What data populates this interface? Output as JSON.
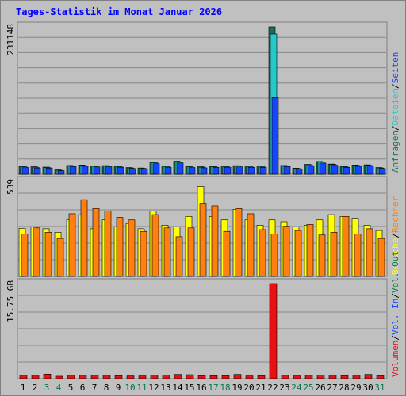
{
  "title": "Tages-Statistik im Monat Januar 2026",
  "colors": {
    "title": "#0000ff",
    "frame_bg": "#c0c0c0",
    "plot_bg": "#c0c0c0",
    "grid": "#888888",
    "anfragen": "#1e6e55",
    "dateien": "#28c8c8",
    "seiten": "#1446ff",
    "besuche": "#ffff00",
    "rechner": "#ff8010",
    "volumen": "#e81010",
    "vol_in": "#1446ff",
    "vol_out": "#008040",
    "weekend_label": "#007850",
    "weekday_label": "#000000"
  },
  "chart_data": [
    {
      "type": "bar",
      "ymax_label": "231148",
      "ylim": [
        0,
        231148
      ],
      "grid": true,
      "legend_position": "right",
      "legend": [
        {
          "key": "anfragen",
          "text": "Anfragen"
        },
        {
          "key": "dateien",
          "text": "Dateien"
        },
        {
          "key": "seiten",
          "text": "Seiten"
        }
      ],
      "series": [
        {
          "name": "Anfragen",
          "values": [
            12500,
            11800,
            11200,
            6800,
            13800,
            14500,
            13200,
            13600,
            12800,
            10500,
            9800,
            19000,
            13000,
            20500,
            12500,
            11800,
            12500,
            12800,
            13500,
            12800,
            12800,
            231148,
            13800,
            9500,
            15500,
            20000,
            16000,
            12500,
            14500,
            14800,
            10500
          ]
        },
        {
          "name": "Dateien",
          "values": [
            11800,
            11000,
            10500,
            6200,
            13000,
            13800,
            12500,
            12800,
            12000,
            9800,
            9200,
            18000,
            12200,
            19500,
            11800,
            11000,
            11800,
            12000,
            12800,
            12000,
            12000,
            220000,
            13000,
            8800,
            14800,
            19000,
            15200,
            11800,
            13800,
            14000,
            9800
          ]
        },
        {
          "name": "Seiten",
          "values": [
            10500,
            9800,
            9500,
            5500,
            12000,
            12500,
            11500,
            11800,
            11000,
            8800,
            8500,
            16500,
            11000,
            17800,
            10500,
            10000,
            10800,
            11000,
            11500,
            10800,
            10800,
            120000,
            12000,
            8000,
            13500,
            17500,
            14000,
            10800,
            12500,
            12800,
            8800
          ]
        }
      ]
    },
    {
      "type": "bar",
      "ymax_label": "539",
      "ylim": [
        0,
        539
      ],
      "grid": true,
      "legend_position": "right",
      "legend": [
        {
          "key": "besuche",
          "text": "Besuche"
        },
        {
          "key": "rechner",
          "text": "Rechner"
        }
      ],
      "series": [
        {
          "name": "Besuche",
          "values": [
            272,
            280,
            270,
            250,
            320,
            350,
            270,
            320,
            280,
            300,
            270,
            370,
            290,
            280,
            340,
            510,
            340,
            320,
            380,
            320,
            290,
            320,
            310,
            280,
            290,
            320,
            350,
            340,
            330,
            290,
            260
          ]
        },
        {
          "name": "Rechner",
          "values": [
            240,
            275,
            250,
            215,
            355,
            435,
            385,
            370,
            335,
            320,
            255,
            350,
            275,
            225,
            275,
            415,
            400,
            255,
            385,
            355,
            265,
            240,
            285,
            260,
            295,
            235,
            250,
            340,
            240,
            270,
            215
          ]
        }
      ]
    },
    {
      "type": "bar",
      "ymax_label": "15.75 GB",
      "ylim": [
        0,
        15.75
      ],
      "unit": "GB",
      "grid": true,
      "legend_position": "right",
      "legend": [
        {
          "key": "volumen",
          "text": "Volumen"
        },
        {
          "key": "vol_in",
          "text": "Vol. In"
        },
        {
          "key": "vol_out",
          "text": "Vol. Out"
        }
      ],
      "series": [
        {
          "name": "Volumen",
          "values": [
            0.55,
            0.55,
            0.75,
            0.4,
            0.55,
            0.55,
            0.55,
            0.55,
            0.5,
            0.45,
            0.45,
            0.6,
            0.6,
            0.7,
            0.65,
            0.5,
            0.5,
            0.5,
            0.7,
            0.45,
            0.5,
            15.75,
            0.55,
            0.45,
            0.55,
            0.6,
            0.55,
            0.5,
            0.55,
            0.7,
            0.5
          ]
        }
      ]
    }
  ],
  "x_axis": {
    "labels": [
      "1",
      "2",
      "3",
      "4",
      "5",
      "6",
      "7",
      "8",
      "9",
      "10",
      "11",
      "12",
      "13",
      "14",
      "15",
      "16",
      "17",
      "18",
      "19",
      "20",
      "21",
      "22",
      "23",
      "24",
      "25",
      "26",
      "27",
      "28",
      "29",
      "30",
      "31"
    ],
    "weekend_days": [
      3,
      4,
      10,
      11,
      17,
      18,
      24,
      25,
      31
    ]
  }
}
